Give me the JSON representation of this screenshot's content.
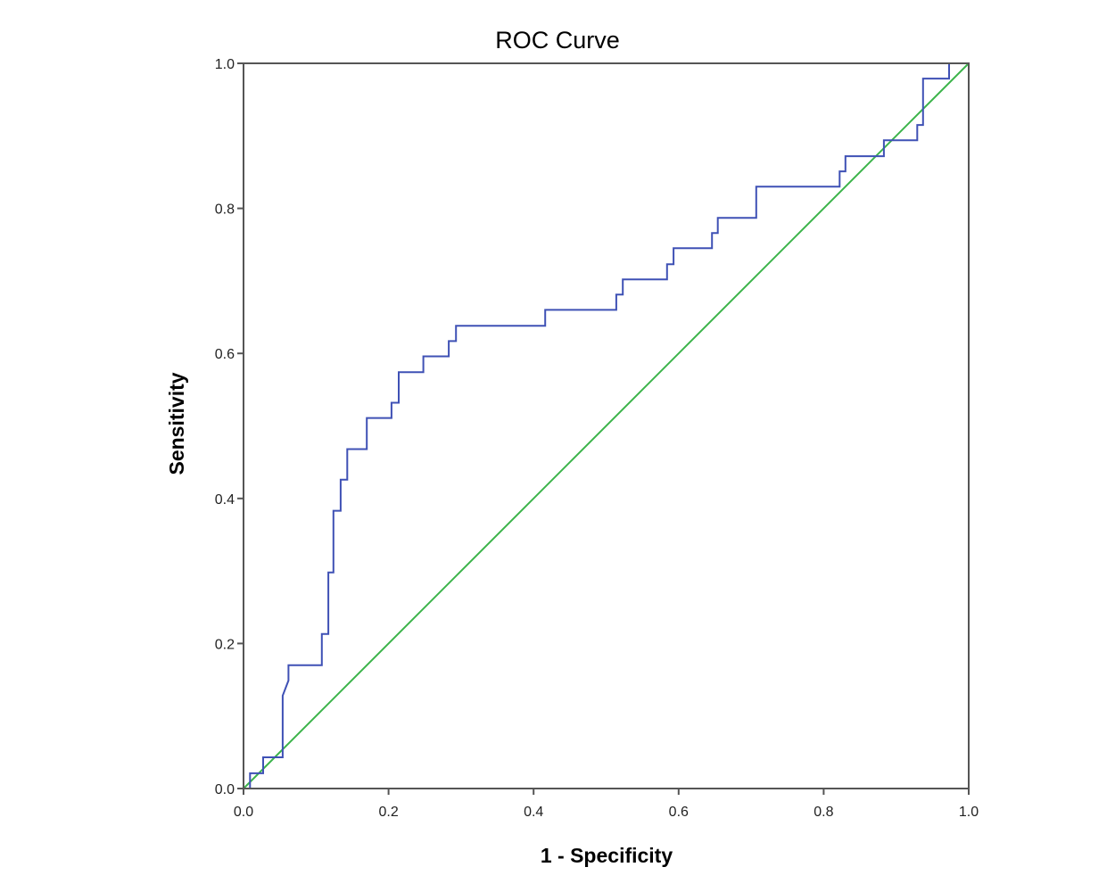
{
  "chart_data": {
    "type": "line",
    "title": "ROC Curve",
    "xlabel": "1 - Specificity",
    "ylabel": "Sensitivity",
    "xlim": [
      0,
      1
    ],
    "ylim": [
      0,
      1
    ],
    "xticks": [
      "0.0",
      "0.2",
      "0.4",
      "0.6",
      "0.8",
      "1.0"
    ],
    "yticks": [
      "0.0",
      "0.2",
      "0.4",
      "0.6",
      "0.8",
      "1.0"
    ],
    "grid": false,
    "legend": "none",
    "series": [
      {
        "color": "#3f51b5",
        "points": [
          [
            0,
            0
          ],
          [
            0.009,
            0
          ],
          [
            0.009,
            0.021
          ],
          [
            0.027,
            0.021
          ],
          [
            0.027,
            0.043
          ],
          [
            0.054,
            0.043
          ],
          [
            0.054,
            0.128
          ],
          [
            0.062,
            0.149
          ],
          [
            0.062,
            0.17
          ],
          [
            0.108,
            0.17
          ],
          [
            0.108,
            0.213
          ],
          [
            0.117,
            0.213
          ],
          [
            0.117,
            0.298
          ],
          [
            0.124,
            0.298
          ],
          [
            0.124,
            0.383
          ],
          [
            0.134,
            0.383
          ],
          [
            0.134,
            0.426
          ],
          [
            0.143,
            0.426
          ],
          [
            0.143,
            0.468
          ],
          [
            0.17,
            0.468
          ],
          [
            0.17,
            0.511
          ],
          [
            0.204,
            0.511
          ],
          [
            0.204,
            0.532
          ],
          [
            0.214,
            0.532
          ],
          [
            0.214,
            0.574
          ],
          [
            0.248,
            0.574
          ],
          [
            0.248,
            0.596
          ],
          [
            0.283,
            0.596
          ],
          [
            0.283,
            0.617
          ],
          [
            0.293,
            0.617
          ],
          [
            0.293,
            0.638
          ],
          [
            0.416,
            0.638
          ],
          [
            0.416,
            0.66
          ],
          [
            0.514,
            0.66
          ],
          [
            0.514,
            0.681
          ],
          [
            0.523,
            0.681
          ],
          [
            0.523,
            0.702
          ],
          [
            0.584,
            0.702
          ],
          [
            0.584,
            0.723
          ],
          [
            0.593,
            0.723
          ],
          [
            0.593,
            0.745
          ],
          [
            0.646,
            0.745
          ],
          [
            0.646,
            0.766
          ],
          [
            0.654,
            0.766
          ],
          [
            0.654,
            0.787
          ],
          [
            0.707,
            0.787
          ],
          [
            0.707,
            0.83
          ],
          [
            0.822,
            0.83
          ],
          [
            0.822,
            0.851
          ],
          [
            0.83,
            0.851
          ],
          [
            0.83,
            0.872
          ],
          [
            0.883,
            0.872
          ],
          [
            0.883,
            0.894
          ],
          [
            0.929,
            0.894
          ],
          [
            0.929,
            0.915
          ],
          [
            0.937,
            0.915
          ],
          [
            0.937,
            0.979
          ],
          [
            0.973,
            0.979
          ],
          [
            0.973,
            1.0
          ],
          [
            1.0,
            1.0
          ]
        ]
      },
      {
        "color": "#3cb44b",
        "points": [
          [
            0,
            0
          ],
          [
            1,
            1
          ]
        ]
      }
    ]
  }
}
